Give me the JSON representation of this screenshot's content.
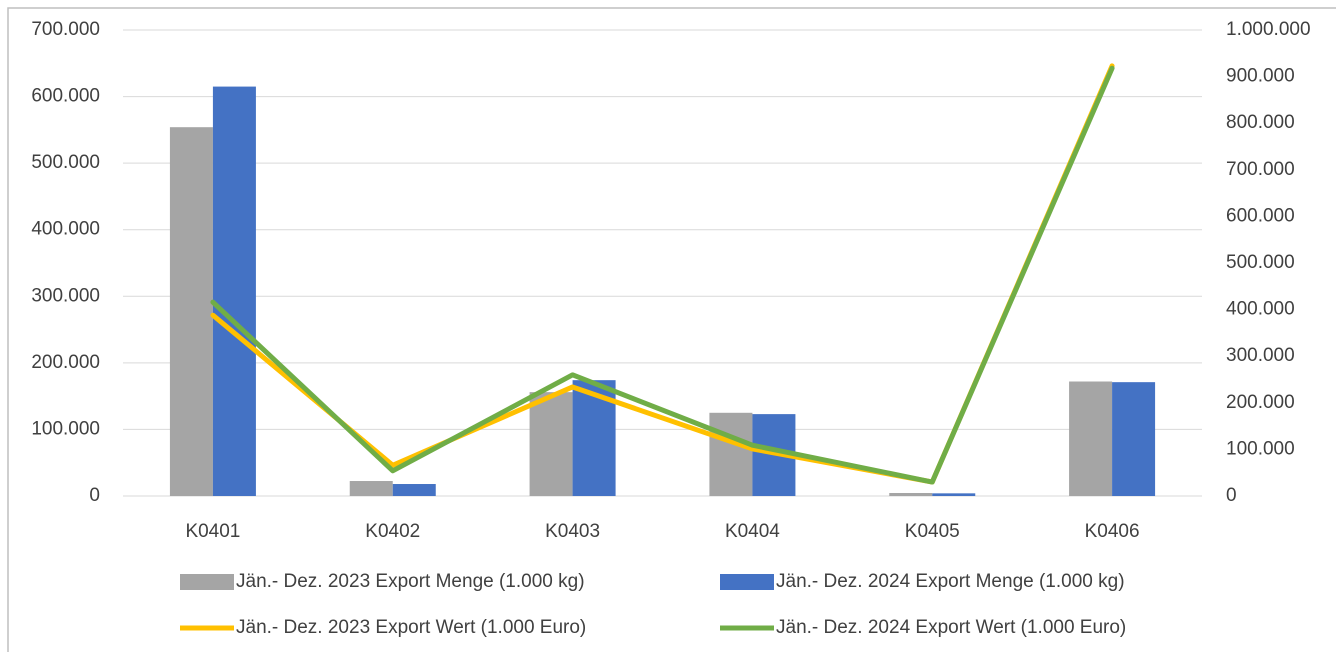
{
  "chart_data": {
    "type": "bar_line",
    "categories": [
      "K0401",
      "K0402",
      "K0403",
      "K0404",
      "K0405",
      "K0406"
    ],
    "series": [
      {
        "name": "Jän.- Dez. 2023 Export Menge (1.000 kg)",
        "type": "bar",
        "color": "#a5a5a5",
        "values": [
          554000,
          22500,
          156000,
          125000,
          4500,
          172000
        ]
      },
      {
        "name": "Jän.- Dez. 2024 Export Menge (1.000 kg)",
        "type": "bar",
        "color": "#4472c4",
        "values": [
          615000,
          18000,
          174000,
          123000,
          4000,
          171000
        ]
      },
      {
        "name": "Jän.- Dez. 2023 Export Wert (1.000 Euro)",
        "type": "line",
        "axis": "y2",
        "color": "#ffc000",
        "values": [
          388000,
          66000,
          234000,
          101000,
          30000,
          923000
        ]
      },
      {
        "name": "Jän.- Dez. 2024 Export Wert (1.000 Euro)",
        "type": "line",
        "axis": "y2",
        "color": "#70ad47",
        "values": [
          416000,
          54000,
          260000,
          109000,
          30000,
          918000
        ]
      }
    ],
    "ylim": [
      0,
      700000
    ],
    "yticks": [
      0,
      {
        "value": 100000,
        "label": "100.000"
      },
      {
        "value": 200000,
        "label": "200.000"
      },
      {
        "value": 300000,
        "label": "300.000"
      },
      {
        "value": 400000,
        "label": "400.000"
      },
      {
        "value": 500000,
        "label": "500.000"
      },
      {
        "value": 600000,
        "label": "600.000"
      },
      {
        "value": 700000,
        "label": "700.000"
      }
    ],
    "y2lim": [
      0,
      1000000
    ],
    "y2ticks": [
      0,
      {
        "value": 100000,
        "label": "100.000"
      },
      {
        "value": 200000,
        "label": "200.000"
      },
      {
        "value": 300000,
        "label": "300.000"
      },
      {
        "value": 400000,
        "label": "400.000"
      },
      {
        "value": 500000,
        "label": "500.000"
      },
      {
        "value": 600000,
        "label": "600.000"
      },
      {
        "value": 700000,
        "label": "700.000"
      },
      {
        "value": 800000,
        "label": "800.000"
      },
      {
        "value": 900000,
        "label": "900.000"
      },
      {
        "value": 1000000,
        "label": "1.000.000"
      }
    ],
    "grid": true,
    "legend": "bottom"
  }
}
